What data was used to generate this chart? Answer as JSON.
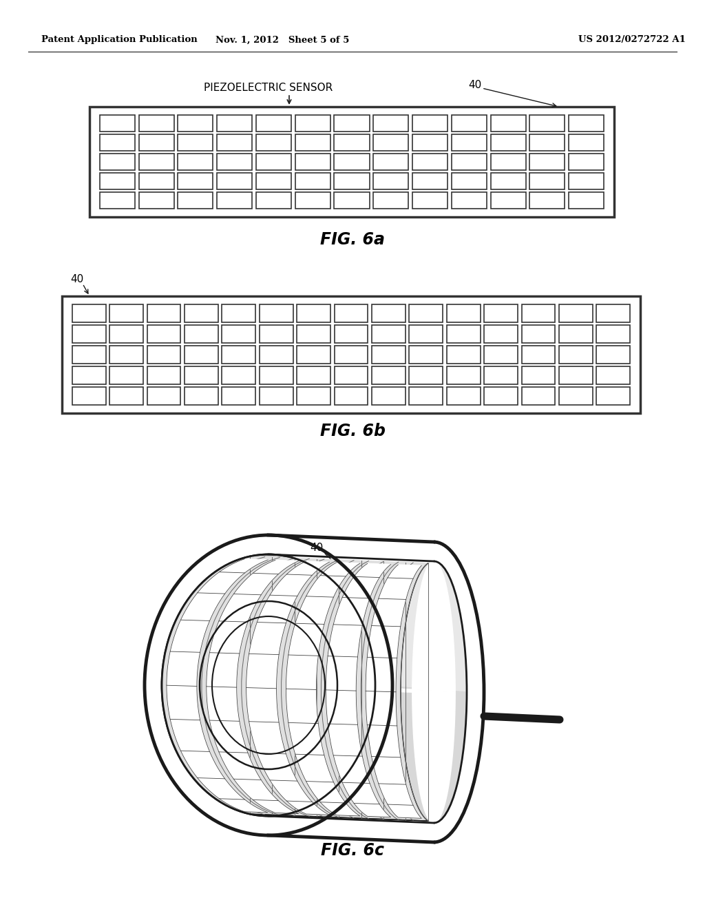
{
  "header_left": "Patent Application Publication",
  "header_mid": "Nov. 1, 2012   Sheet 5 of 5",
  "header_right": "US 2012/0272722 A1",
  "fig6a_label": "FIG. 6a",
  "fig6b_label": "FIG. 6b",
  "fig6c_label": "FIG. 6c",
  "piezo_label": "PIEZOELECTRIC SENSOR",
  "ref_num": "40",
  "bg_color": "#ffffff",
  "line_color": "#1a1a1a",
  "fig6a_rows": 5,
  "fig6a_cols": 13,
  "fig6b_rows": 5,
  "fig6b_cols": 15
}
